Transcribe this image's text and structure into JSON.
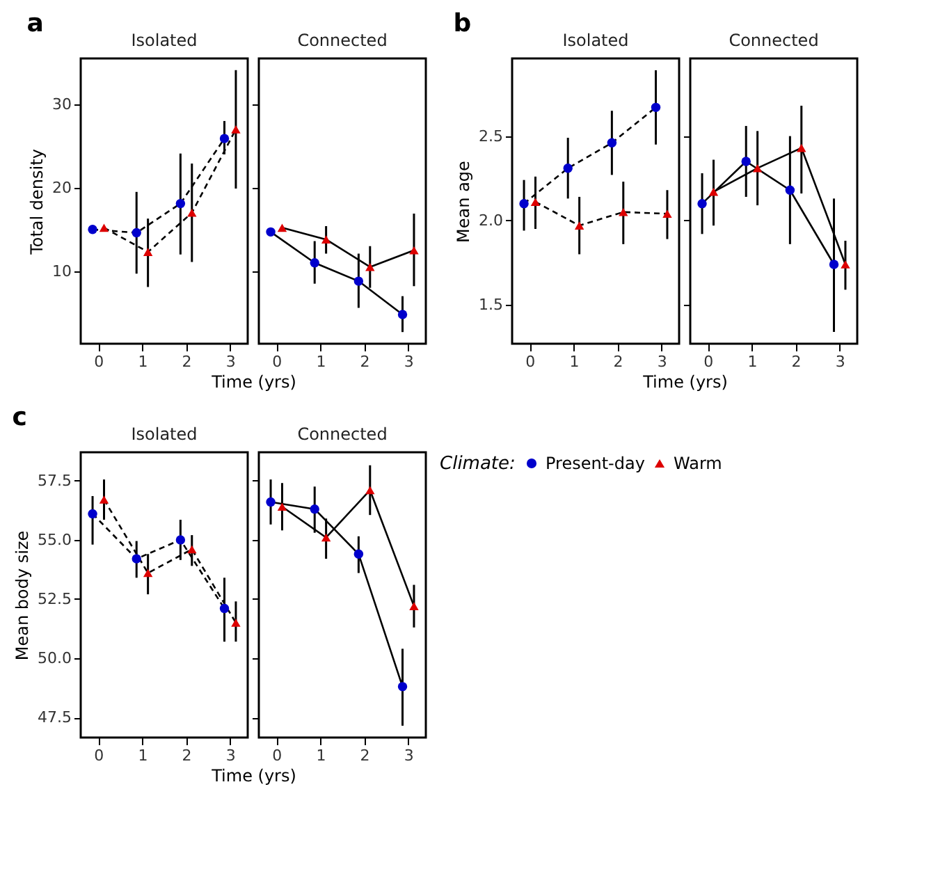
{
  "chart_data": [
    {
      "type": "line",
      "title": "Isolated",
      "annotations": [
        "a"
      ],
      "xlabel": "Time (yrs)",
      "ylabel": "Total density",
      "xlim": [
        -0.4,
        3.4
      ],
      "xticks": [
        0,
        1,
        2,
        3
      ],
      "ylim": [
        1.3,
        35.5
      ],
      "yticks": [
        10,
        20,
        30
      ],
      "line_style": "dashed",
      "series": [
        {
          "color": "#0000cc",
          "marker": "circle",
          "x": [
            -0.13,
            0.87,
            1.87,
            2.87
          ],
          "values": [
            15.0,
            14.6,
            18.1,
            25.9
          ],
          "errors": [
            null,
            [
              9.7,
              19.5
            ],
            [
              12.0,
              24.1
            ],
            [
              24.0,
              28.0
            ]
          ]
        },
        {
          "color": "#dd0000",
          "marker": "triangle",
          "x": [
            0.13,
            1.13,
            2.13,
            3.13
          ],
          "values": [
            15.2,
            12.3,
            17.0,
            27.0
          ],
          "errors": [
            null,
            [
              8.1,
              16.3
            ],
            [
              11.1,
              22.9
            ],
            [
              19.9,
              34.1
            ]
          ]
        }
      ]
    },
    {
      "type": "line",
      "title": "Connected",
      "xlim": [
        -0.4,
        3.4
      ],
      "xticks": [
        0,
        1,
        2,
        3
      ],
      "ylim": [
        1.3,
        35.5
      ],
      "yticks": [
        10,
        20,
        30
      ],
      "tick_labels": "x",
      "line_style": "solid",
      "series": [
        {
          "color": "#0000cc",
          "marker": "circle",
          "x": [
            -0.13,
            0.87,
            1.87,
            2.87
          ],
          "values": [
            14.7,
            11.0,
            8.8,
            4.8
          ],
          "errors": [
            null,
            [
              8.5,
              13.6
            ],
            [
              5.6,
              12.1
            ],
            [
              2.7,
              7.0
            ]
          ]
        },
        {
          "color": "#dd0000",
          "marker": "triangle",
          "x": [
            0.13,
            1.13,
            2.13,
            3.13
          ],
          "values": [
            15.2,
            13.8,
            10.5,
            12.5
          ],
          "errors": [
            null,
            [
              12.1,
              15.4
            ],
            [
              8.0,
              13.0
            ],
            [
              8.2,
              16.9
            ]
          ]
        }
      ]
    },
    {
      "type": "line",
      "title": "Isolated",
      "annotations": [
        "b"
      ],
      "xlabel": "Time (yrs)",
      "ylabel": "Mean age",
      "xlim": [
        -0.4,
        3.4
      ],
      "xticks": [
        0,
        1,
        2,
        3
      ],
      "ylim": [
        1.27,
        2.96
      ],
      "yticks": [
        1.5,
        {
          "value": 2,
          "label": "2.0"
        },
        2.5
      ],
      "line_style": "dashed",
      "series": [
        {
          "color": "#0000cc",
          "marker": "circle",
          "x": [
            -0.13,
            0.87,
            1.87,
            2.87
          ],
          "values": [
            2.1,
            2.31,
            2.46,
            2.67
          ],
          "errors": [
            [
              1.94,
              2.24
            ],
            [
              2.13,
              2.49
            ],
            [
              2.27,
              2.65
            ],
            [
              2.45,
              2.89
            ]
          ]
        },
        {
          "color": "#dd0000",
          "marker": "triangle",
          "x": [
            0.13,
            1.13,
            2.13,
            3.13
          ],
          "values": [
            2.11,
            1.97,
            2.05,
            2.04
          ],
          "errors": [
            [
              1.95,
              2.26
            ],
            [
              1.8,
              2.14
            ],
            [
              1.86,
              2.23
            ],
            [
              1.89,
              2.18
            ]
          ]
        }
      ]
    },
    {
      "type": "line",
      "title": "Connected",
      "xlim": [
        -0.4,
        3.4
      ],
      "xticks": [
        0,
        1,
        2,
        3
      ],
      "ylim": [
        1.27,
        2.96
      ],
      "yticks": [
        1.5,
        2,
        2.5
      ],
      "tick_labels": "x",
      "line_style": "solid",
      "series": [
        {
          "color": "#0000cc",
          "marker": "circle",
          "x": [
            -0.13,
            0.87,
            1.87,
            2.87
          ],
          "values": [
            2.1,
            2.35,
            2.18,
            1.74
          ],
          "errors": [
            [
              1.92,
              2.28
            ],
            [
              2.14,
              2.56
            ],
            [
              1.86,
              2.5
            ],
            [
              1.34,
              2.13
            ]
          ]
        },
        {
          "color": "#dd0000",
          "marker": "triangle",
          "x": [
            0.13,
            1.13,
            2.13,
            3.13
          ],
          "values": [
            2.17,
            2.31,
            2.43,
            1.74
          ],
          "errors": [
            [
              1.97,
              2.36
            ],
            [
              2.09,
              2.53
            ],
            [
              2.16,
              2.68
            ],
            [
              1.59,
              1.88
            ]
          ]
        }
      ]
    },
    {
      "type": "line",
      "title": "Isolated",
      "annotations": [
        "c"
      ],
      "xlabel": "Time (yrs)",
      "ylabel": "Mean body size",
      "xlim": [
        -0.4,
        3.4
      ],
      "xticks": [
        0,
        1,
        2,
        3
      ],
      "ylim": [
        46.65,
        58.7
      ],
      "yticks": [
        47.5,
        {
          "value": 50,
          "label": "50.0"
        },
        52.5,
        {
          "value": 55,
          "label": "55.0"
        },
        57.5
      ],
      "line_style": "dashed",
      "series": [
        {
          "color": "#0000cc",
          "marker": "circle",
          "x": [
            -0.13,
            0.87,
            1.87,
            2.87
          ],
          "values": [
            56.1,
            54.2,
            55.0,
            52.1
          ],
          "errors": [
            [
              54.8,
              56.85
            ],
            [
              53.4,
              54.95
            ],
            [
              54.15,
              55.85
            ],
            [
              50.7,
              53.4
            ]
          ]
        },
        {
          "color": "#dd0000",
          "marker": "triangle",
          "x": [
            0.13,
            1.13,
            2.13,
            3.13
          ],
          "values": [
            56.7,
            53.6,
            54.6,
            51.5
          ],
          "errors": [
            [
              55.85,
              57.55
            ],
            [
              52.7,
              54.4
            ],
            [
              53.9,
              55.2
            ],
            [
              50.7,
              52.4
            ]
          ]
        }
      ]
    },
    {
      "type": "line",
      "title": "Connected",
      "xlim": [
        -0.4,
        3.4
      ],
      "xticks": [
        0,
        1,
        2,
        3
      ],
      "ylim": [
        46.65,
        58.7
      ],
      "yticks": [
        47.5,
        50,
        52.5,
        55,
        57.5
      ],
      "tick_labels": "x",
      "line_style": "solid",
      "legend": "right",
      "legend_title": "Climate:",
      "series": [
        {
          "name": "Present-day",
          "color": "#0000cc",
          "marker": "circle",
          "x": [
            -0.13,
            0.87,
            1.87,
            2.87
          ],
          "values": [
            56.6,
            56.3,
            54.4,
            48.8
          ],
          "errors": [
            [
              55.65,
              57.55
            ],
            [
              55.3,
              57.25
            ],
            [
              53.6,
              55.15
            ],
            [
              47.15,
              50.4
            ]
          ]
        },
        {
          "name": "Warm",
          "color": "#dd0000",
          "marker": "triangle",
          "x": [
            0.13,
            1.13,
            2.13,
            3.13
          ],
          "values": [
            56.4,
            55.1,
            57.1,
            52.2
          ],
          "errors": [
            [
              55.4,
              57.4
            ],
            [
              54.2,
              55.9
            ],
            [
              56.05,
              58.15
            ],
            [
              51.3,
              53.1
            ]
          ]
        }
      ]
    }
  ]
}
